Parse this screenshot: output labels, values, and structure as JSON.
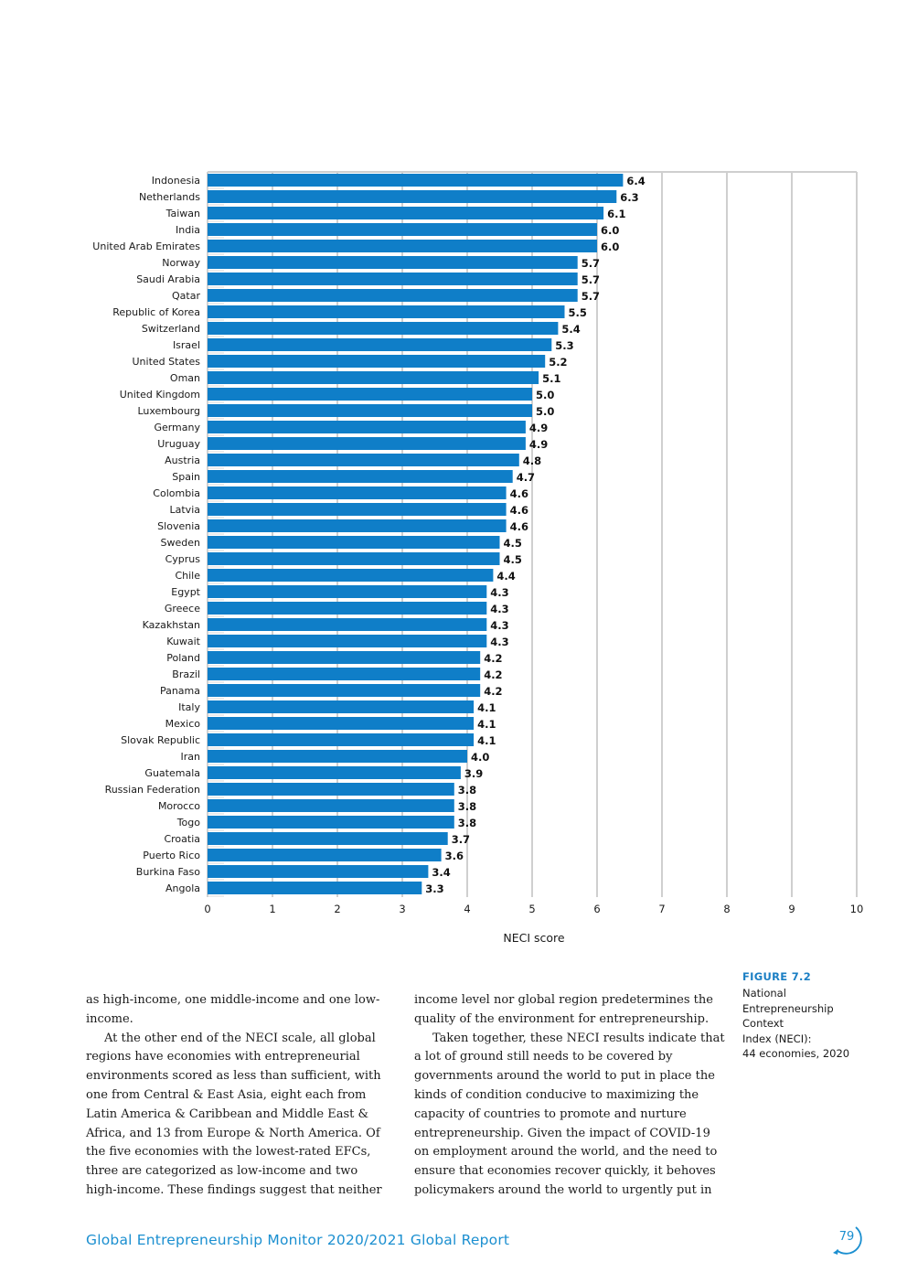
{
  "chart_data": {
    "type": "bar",
    "orientation": "horizontal",
    "categories": [
      "Indonesia",
      "Netherlands",
      "Taiwan",
      "India",
      "United Arab Emirates",
      "Norway",
      "Saudi Arabia",
      "Qatar",
      "Republic of Korea",
      "Switzerland",
      "Israel",
      "United States",
      "Oman",
      "United Kingdom",
      "Luxembourg",
      "Germany",
      "Uruguay",
      "Austria",
      "Spain",
      "Colombia",
      "Latvia",
      "Slovenia",
      "Sweden",
      "Cyprus",
      "Chile",
      "Egypt",
      "Greece",
      "Kazakhstan",
      "Kuwait",
      "Poland",
      "Brazil",
      "Panama",
      "Italy",
      "Mexico",
      "Slovak Republic",
      "Iran",
      "Guatemala",
      "Russian Federation",
      "Morocco",
      "Togo",
      "Croatia",
      "Puerto Rico",
      "Burkina Faso",
      "Angola"
    ],
    "values": [
      6.4,
      6.3,
      6.1,
      6.0,
      6.0,
      5.7,
      5.7,
      5.7,
      5.5,
      5.4,
      5.3,
      5.2,
      5.1,
      5.0,
      5.0,
      4.9,
      4.9,
      4.8,
      4.7,
      4.6,
      4.6,
      4.6,
      4.5,
      4.5,
      4.4,
      4.3,
      4.3,
      4.3,
      4.3,
      4.2,
      4.2,
      4.2,
      4.1,
      4.1,
      4.1,
      4.0,
      3.9,
      3.8,
      3.8,
      3.8,
      3.7,
      3.6,
      3.4,
      3.3
    ],
    "xlabel": "NECI score",
    "ylabel": "",
    "xlim": [
      0,
      10
    ],
    "xticks": [
      "0",
      "1",
      "2",
      "3",
      "4",
      "5",
      "6",
      "7",
      "8",
      "9",
      "10"
    ],
    "grid": true,
    "bar_color": "#0f7ec8"
  },
  "caption": {
    "figure": "FIGURE 7.2",
    "lines": [
      "National",
      "Entrepreneurship",
      "Context",
      "Index (NECI):",
      "44 economies, 2020"
    ]
  },
  "body": {
    "col1": [
      {
        "indent": false,
        "text": "as high-income, one middle-income and one low-income."
      },
      {
        "indent": true,
        "text": "At the other end of the NECI scale, all global regions have economies with entrepreneurial environments scored as less than sufficient, with one from Central & East Asia, eight each from Latin America & Caribbean and Middle East & Africa, and 13 from Europe & North America. Of the five economies with the lowest-rated EFCs, three are categorized as low-income and two high-income. These findings suggest that neither"
      }
    ],
    "col2": [
      {
        "indent": false,
        "text": "income level nor global region predetermines the quality of the environment for entrepreneurship."
      },
      {
        "indent": true,
        "text": "Taken together, these NECI results indicate that a lot of ground still needs to be covered by governments around the world to put in place the kinds of condition conducive to maximizing the capacity of countries to promote and nurture entrepreneurship. Given the impact of COVID-19 on employment around the world, and the need to ensure that economies recover quickly, it behoves policymakers around the world to urgently put in"
      }
    ]
  },
  "footer": {
    "title": "Global Entrepreneurship Monitor 2020/2021 Global Report",
    "page_number": "79"
  }
}
